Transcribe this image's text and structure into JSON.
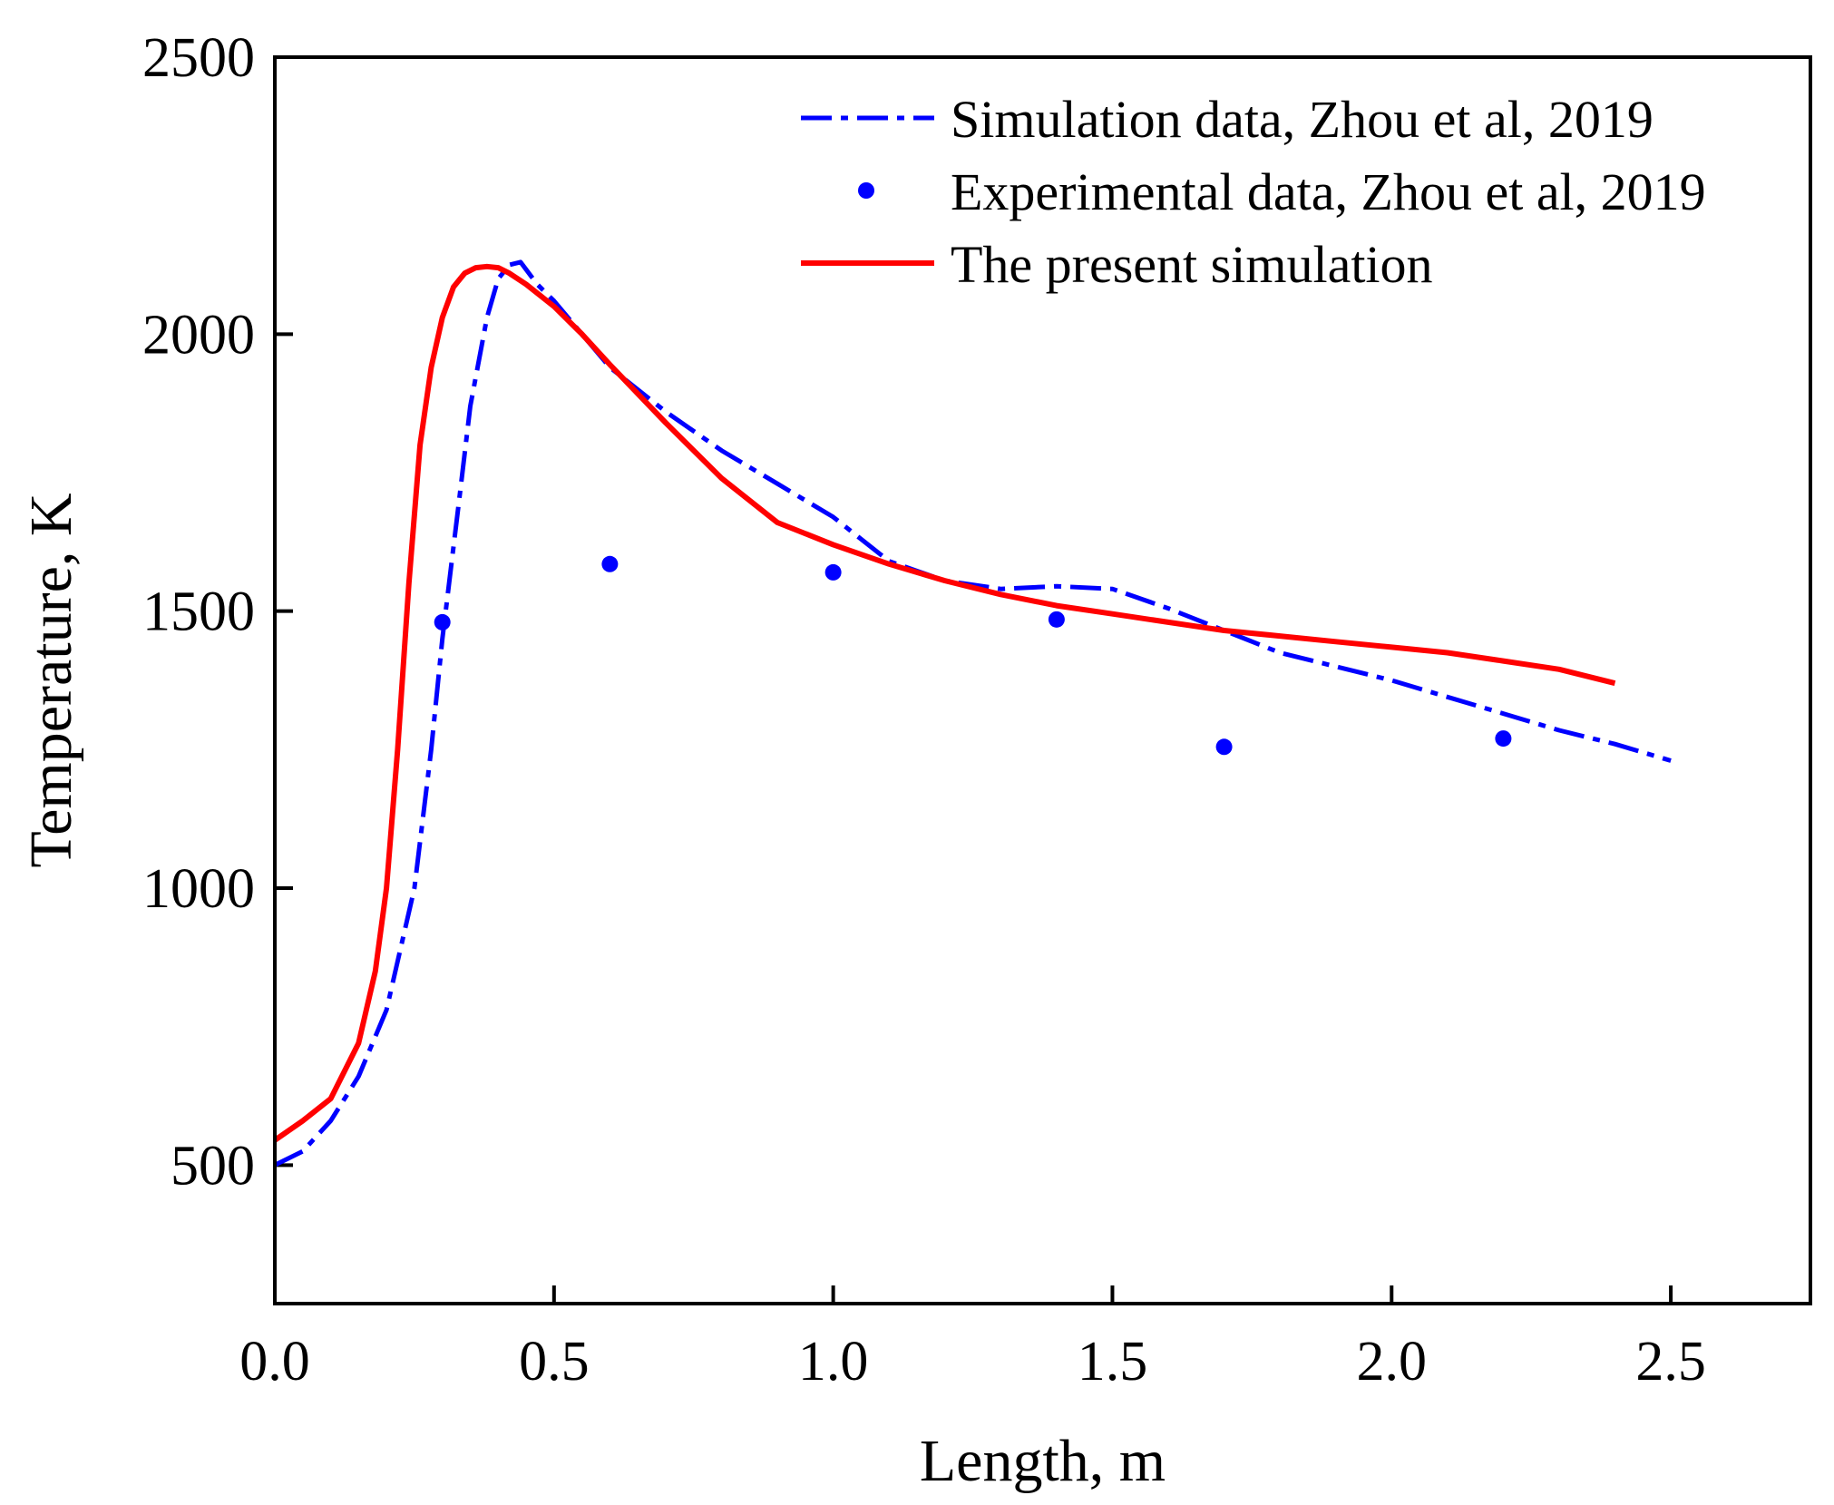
{
  "chart_data": {
    "type": "line",
    "title": "",
    "xlabel": "Length, m",
    "ylabel": "Temperature, K",
    "xlim": [
      0.0,
      2.75
    ],
    "ylim": [
      250,
      2500
    ],
    "xticks": [
      0.0,
      0.5,
      1.0,
      1.5,
      2.0,
      2.5
    ],
    "xtick_labels": [
      "0.0",
      "0.5",
      "1.0",
      "1.5",
      "2.0",
      "2.5"
    ],
    "yticks": [
      500,
      1000,
      1500,
      2000,
      2500
    ],
    "ytick_labels": [
      "500",
      "1000",
      "1500",
      "2000",
      "2500"
    ],
    "legend_position": "top-right",
    "series": [
      {
        "name": "Simulation data, Zhou et al, 2019",
        "style": "dash-dot",
        "color": "#0000ff",
        "x": [
          0.0,
          0.05,
          0.1,
          0.15,
          0.2,
          0.25,
          0.28,
          0.3,
          0.33,
          0.35,
          0.38,
          0.4,
          0.42,
          0.44,
          0.47,
          0.5,
          0.55,
          0.6,
          0.7,
          0.8,
          0.9,
          1.0,
          1.1,
          1.2,
          1.3,
          1.4,
          1.5,
          1.6,
          1.7,
          1.8,
          1.9,
          2.0,
          2.1,
          2.2,
          2.3,
          2.4,
          2.5
        ],
        "y": [
          500,
          525,
          580,
          660,
          780,
          1000,
          1250,
          1450,
          1700,
          1870,
          2030,
          2100,
          2125,
          2130,
          2090,
          2060,
          2000,
          1940,
          1860,
          1790,
          1730,
          1670,
          1590,
          1555,
          1540,
          1545,
          1540,
          1505,
          1465,
          1425,
          1400,
          1375,
          1345,
          1315,
          1285,
          1260,
          1230
        ]
      },
      {
        "name": "Experimental data, Zhou et al, 2019",
        "style": "markers",
        "color": "#0000ff",
        "x": [
          0.3,
          0.6,
          1.0,
          1.4,
          1.7,
          2.2
        ],
        "y": [
          1480,
          1585,
          1570,
          1485,
          1255,
          1270
        ]
      },
      {
        "name": "The present simulation",
        "style": "solid",
        "color": "#ff0000",
        "x": [
          0.0,
          0.05,
          0.1,
          0.15,
          0.18,
          0.2,
          0.22,
          0.24,
          0.26,
          0.28,
          0.3,
          0.32,
          0.34,
          0.36,
          0.38,
          0.4,
          0.42,
          0.45,
          0.5,
          0.55,
          0.6,
          0.7,
          0.8,
          0.9,
          1.0,
          1.1,
          1.2,
          1.3,
          1.4,
          1.5,
          1.6,
          1.7,
          1.8,
          1.9,
          2.0,
          2.1,
          2.2,
          2.3,
          2.4
        ],
        "y": [
          545,
          580,
          620,
          720,
          850,
          1000,
          1250,
          1550,
          1800,
          1940,
          2030,
          2085,
          2110,
          2120,
          2122,
          2120,
          2110,
          2090,
          2050,
          2000,
          1945,
          1840,
          1740,
          1660,
          1620,
          1585,
          1555,
          1530,
          1510,
          1495,
          1480,
          1465,
          1455,
          1445,
          1435,
          1425,
          1410,
          1395,
          1370
        ]
      }
    ]
  }
}
